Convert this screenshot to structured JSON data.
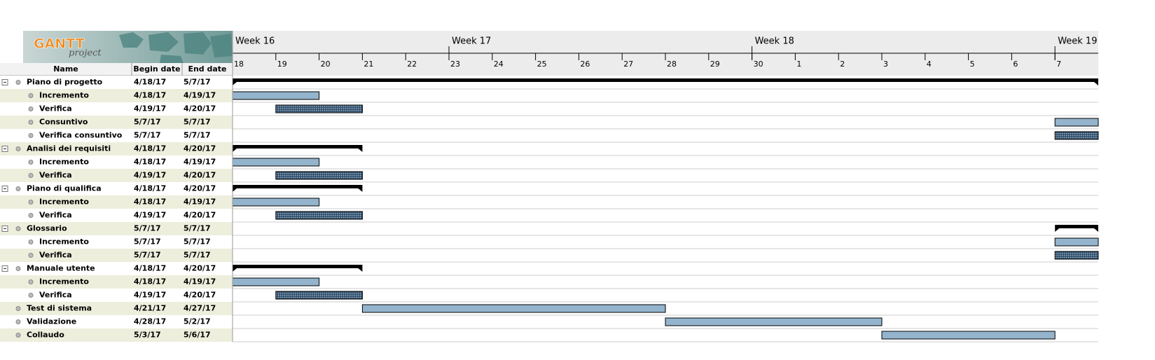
{
  "logo": {
    "title": "GANTT",
    "subtitle": "project"
  },
  "timeline": {
    "weeks": [
      "Week 16",
      "Week 17",
      "Week 18",
      "Week 19"
    ],
    "days": [
      "18",
      "19",
      "20",
      "21",
      "22",
      "23",
      "24",
      "25",
      "26",
      "27",
      "28",
      "29",
      "30",
      "1",
      "2",
      "3",
      "4",
      "5",
      "6",
      "7"
    ]
  },
  "table": {
    "columns": [
      "Name",
      "Begin date",
      "End date"
    ],
    "rows": [
      {
        "name": "Piano di progetto",
        "begin": "4/18/17",
        "end": "5/7/17",
        "kind": "summary",
        "level": 0
      },
      {
        "name": "Incremento",
        "begin": "4/18/17",
        "end": "4/19/17",
        "kind": "task",
        "level": 1
      },
      {
        "name": "Verifica",
        "begin": "4/19/17",
        "end": "4/20/17",
        "kind": "review",
        "level": 1
      },
      {
        "name": "Consuntivo",
        "begin": "5/7/17",
        "end": "5/7/17",
        "kind": "task",
        "level": 1
      },
      {
        "name": "Verifica consuntivo",
        "begin": "5/7/17",
        "end": "5/7/17",
        "kind": "review",
        "level": 1
      },
      {
        "name": "Analisi dei requisiti",
        "begin": "4/18/17",
        "end": "4/20/17",
        "kind": "summary",
        "level": 0
      },
      {
        "name": "Incremento",
        "begin": "4/18/17",
        "end": "4/19/17",
        "kind": "task",
        "level": 1
      },
      {
        "name": "Verifica",
        "begin": "4/19/17",
        "end": "4/20/17",
        "kind": "review",
        "level": 1
      },
      {
        "name": "Piano di qualifica",
        "begin": "4/18/17",
        "end": "4/20/17",
        "kind": "summary",
        "level": 0
      },
      {
        "name": "Incremento",
        "begin": "4/18/17",
        "end": "4/19/17",
        "kind": "task",
        "level": 1
      },
      {
        "name": "Verifica",
        "begin": "4/19/17",
        "end": "4/20/17",
        "kind": "review",
        "level": 1
      },
      {
        "name": "Glossario",
        "begin": "5/7/17",
        "end": "5/7/17",
        "kind": "summary",
        "level": 0
      },
      {
        "name": "Incremento",
        "begin": "5/7/17",
        "end": "5/7/17",
        "kind": "task",
        "level": 1
      },
      {
        "name": "Verifica",
        "begin": "5/7/17",
        "end": "5/7/17",
        "kind": "review",
        "level": 1
      },
      {
        "name": "Manuale utente",
        "begin": "4/18/17",
        "end": "4/20/17",
        "kind": "summary",
        "level": 0
      },
      {
        "name": "Incremento",
        "begin": "4/18/17",
        "end": "4/19/17",
        "kind": "task",
        "level": 1
      },
      {
        "name": "Verifica",
        "begin": "4/19/17",
        "end": "4/20/17",
        "kind": "review",
        "level": 1
      },
      {
        "name": "Test di sistema",
        "begin": "4/21/17",
        "end": "4/27/17",
        "kind": "task",
        "level": 0
      },
      {
        "name": "Validazione",
        "begin": "4/28/17",
        "end": "5/2/17",
        "kind": "task",
        "level": 0
      },
      {
        "name": "Collaudo",
        "begin": "5/3/17",
        "end": "5/6/17",
        "kind": "task",
        "level": 0
      }
    ]
  }
}
